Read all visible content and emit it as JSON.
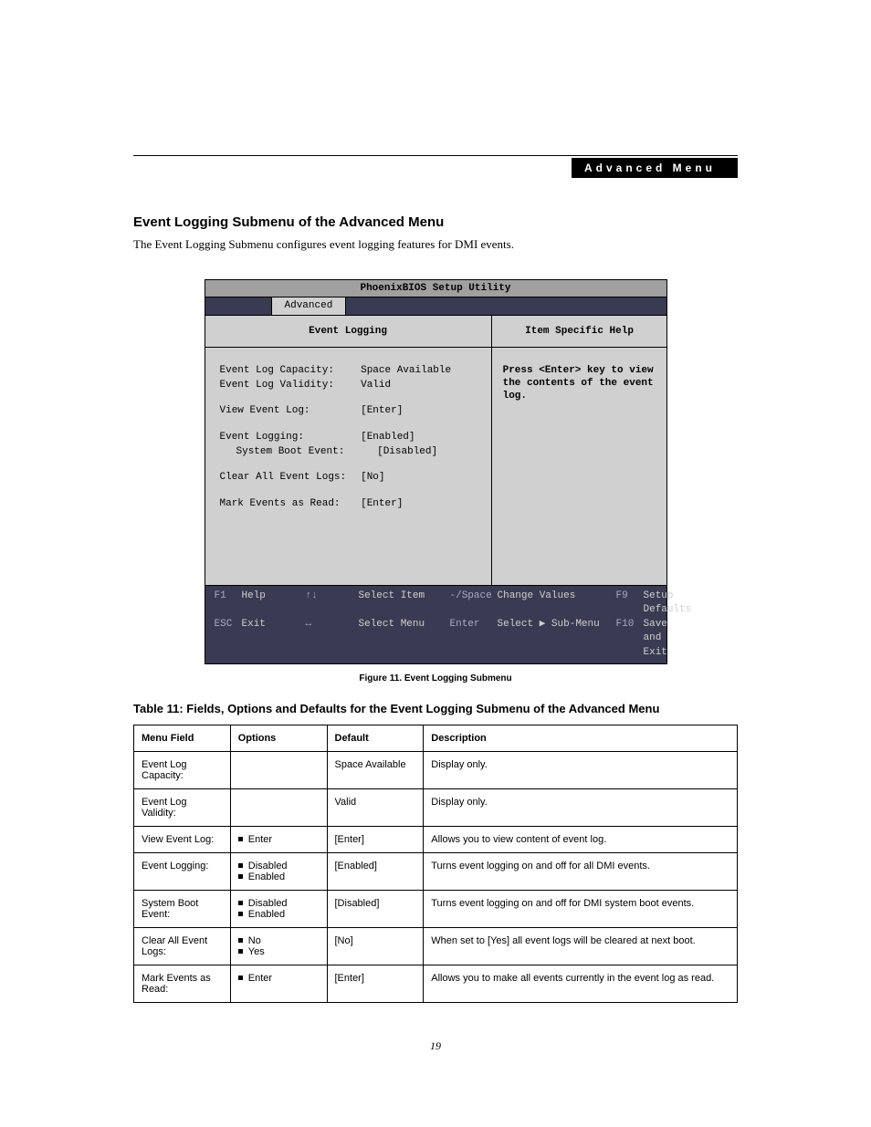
{
  "header": {
    "label": "Advanced Menu"
  },
  "section": {
    "title": "Event Logging Submenu of the Advanced Menu",
    "intro": "The Event Logging Submenu configures event logging features for DMI events."
  },
  "bios": {
    "title": "PhoenixBIOS Setup Utility",
    "active_tab": "Advanced",
    "left_heading": "Event Logging",
    "right_heading": "Item Specific Help",
    "help_text": "Press <Enter> key to view the contents of the event log.",
    "items": [
      {
        "label": "Event Log Capacity:",
        "value": "Space Available"
      },
      {
        "label": "Event Log Validity:",
        "value": "Valid"
      },
      {
        "label": "View Event Log:",
        "value": "[Enter]"
      },
      {
        "label": "Event Logging:",
        "value": "[Enabled]"
      },
      {
        "label": "System Boot Event:",
        "value": "[Disabled]"
      },
      {
        "label": "Clear All Event Logs:",
        "value": "[No]"
      },
      {
        "label": "Mark Events as Read:",
        "value": "[Enter]"
      }
    ],
    "footer": {
      "f1": "F1",
      "help": "Help",
      "updown": "↑↓",
      "select_item": "Select Item",
      "minus": "-/Space",
      "change_values": "Change Values",
      "f9": "F9",
      "setup_defaults": "Setup Defaults",
      "esc": "ESC",
      "exit": "Exit",
      "leftright": "↔",
      "select_menu": "Select Menu",
      "enter": "Enter",
      "select_sub": "Select ▶ Sub-Menu",
      "f10": "F10",
      "save_exit": "Save and Exit"
    }
  },
  "figure_caption": "Figure 11.  Event Logging Submenu",
  "table_caption": "Table 11: Fields, Options and Defaults for the Event Logging Submenu of the Advanced Menu",
  "table": {
    "headers": {
      "c1": "Menu Field",
      "c2": "Options",
      "c3": "Default",
      "c4": "Description"
    },
    "rows": [
      {
        "field": "Event Log Capacity:",
        "options": [],
        "default": "Space Available",
        "desc": "Display only.",
        "indent": false
      },
      {
        "field": "Event Log Validity:",
        "options": [],
        "default": "Valid",
        "desc": "Display only.",
        "indent": false
      },
      {
        "field": "View Event Log:",
        "options": [
          "Enter"
        ],
        "default": "[Enter]",
        "desc": "Allows you to view content of event log.",
        "indent": false
      },
      {
        "field": "Event Logging:",
        "options": [
          "Disabled",
          "Enabled"
        ],
        "default": "[Enabled]",
        "desc": "Turns event logging on and off for all DMI events.",
        "indent": false
      },
      {
        "field": "System Boot Event:",
        "options": [
          "Disabled",
          "Enabled"
        ],
        "default": "[Disabled]",
        "desc": "Turns event logging on and off for DMI system boot events.",
        "indent": true
      },
      {
        "field": "Clear All Event Logs:",
        "options": [
          "No",
          "Yes"
        ],
        "default": "[No]",
        "desc": "When set to [Yes] all event logs will be cleared at next boot.",
        "indent": false
      },
      {
        "field": "Mark Events as Read:",
        "options": [
          "Enter"
        ],
        "default": "[Enter]",
        "desc": "Allows you to make all events currently in the event log as read.",
        "indent": false
      }
    ]
  },
  "page_number": "19"
}
